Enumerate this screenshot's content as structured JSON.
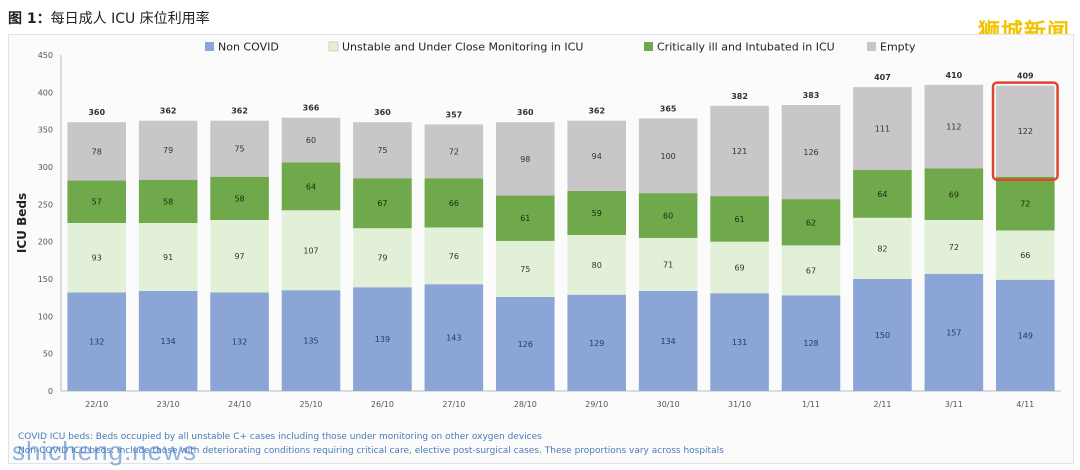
{
  "caption": {
    "prefix": "图 1：",
    "text": "每日成人 ICU 床位利用率"
  },
  "watermark_brand": "狮城新闻",
  "watermark_site": "shicheng.news",
  "footnotes": [
    "COVID ICU beds: Beds occupied by all unstable C+ cases including those under monitoring on other oxygen devices",
    "Non-COVID ICU beds: Include those with deteriorating conditions requiring critical care, elective post-surgical cases. These proportions vary across hospitals"
  ],
  "chart_data": {
    "type": "bar",
    "stacked": true,
    "title": "",
    "xlabel": "",
    "ylabel": "ICU Beds",
    "ylim": [
      0,
      450
    ],
    "yticks": [
      0,
      50,
      100,
      150,
      200,
      250,
      300,
      350,
      400,
      450
    ],
    "legend_position": "top",
    "categories": [
      "22/10",
      "23/10",
      "24/10",
      "25/10",
      "26/10",
      "27/10",
      "28/10",
      "29/10",
      "30/10",
      "31/10",
      "1/11",
      "2/11",
      "3/11",
      "4/11"
    ],
    "series": [
      {
        "name": "Non COVID",
        "color": "#8ba6d6",
        "values": [
          132,
          134,
          132,
          135,
          139,
          143,
          126,
          129,
          134,
          131,
          128,
          150,
          157,
          149
        ]
      },
      {
        "name": "Unstable and Under Close Monitoring in ICU",
        "color": "#e3f0d8",
        "values": [
          93,
          91,
          97,
          107,
          79,
          76,
          75,
          80,
          71,
          69,
          67,
          82,
          72,
          66
        ]
      },
      {
        "name": "Critically ill and Intubated in ICU",
        "color": "#70a84c",
        "values": [
          57,
          58,
          58,
          64,
          67,
          66,
          61,
          59,
          60,
          61,
          62,
          64,
          69,
          72
        ]
      },
      {
        "name": "Empty",
        "color": "#c8c6c8",
        "values": [
          78,
          79,
          75,
          60,
          75,
          72,
          98,
          94,
          100,
          121,
          126,
          111,
          112,
          122
        ]
      }
    ],
    "totals": [
      360,
      362,
      362,
      366,
      360,
      357,
      360,
      362,
      365,
      382,
      383,
      407,
      410,
      409
    ],
    "highlight": {
      "category": "4/11",
      "color": "#e0442c"
    }
  }
}
